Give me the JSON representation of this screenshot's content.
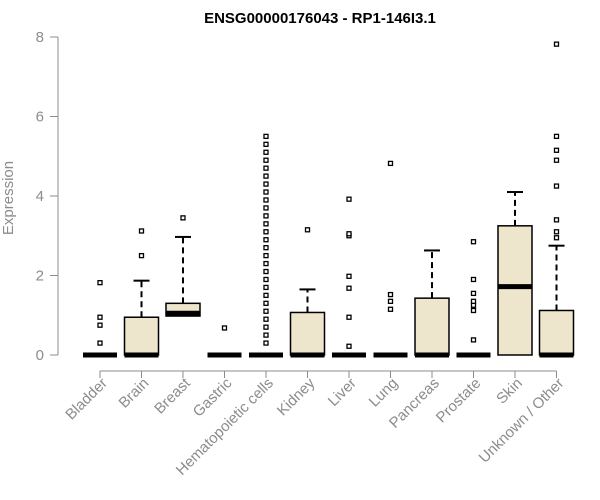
{
  "chart_data": {
    "type": "boxplot",
    "title": "ENSG00000176043 - RP1-146I3.1",
    "xlabel": "",
    "ylabel": "Expression",
    "ylim": [
      0,
      8
    ],
    "yticks": [
      0,
      2,
      4,
      6,
      8
    ],
    "grid": false,
    "colors": {
      "box_fill": "#ede5cc",
      "box_stroke": "#000000",
      "axis": "#8c8c8c"
    },
    "categories": [
      "Bladder",
      "Brain",
      "Breast",
      "Gastric",
      "Hematopoietic cells",
      "Kidney",
      "Liver",
      "Lung",
      "Pancreas",
      "Prostate",
      "Skin",
      "Unknown / Other"
    ],
    "boxes": [
      {
        "category": "Bladder",
        "q1": 0,
        "median": 0,
        "q3": 0,
        "whisker_low": 0,
        "whisker_high": 0,
        "outliers": [
          0.3,
          0.75,
          0.95,
          1.82
        ]
      },
      {
        "category": "Brain",
        "q1": 0,
        "median": 0,
        "q3": 0.95,
        "whisker_low": 0,
        "whisker_high": 1.87,
        "outliers": [
          2.5,
          3.12
        ]
      },
      {
        "category": "Breast",
        "q1": 0.98,
        "median": 1.05,
        "q3": 1.3,
        "whisker_low": 0,
        "whisker_high": 2.97,
        "outliers": [
          3.45
        ]
      },
      {
        "category": "Gastric",
        "q1": 0,
        "median": 0,
        "q3": 0,
        "whisker_low": 0,
        "whisker_high": 0,
        "outliers": [
          0.68
        ]
      },
      {
        "category": "Hematopoietic cells",
        "q1": 0,
        "median": 0,
        "q3": 0,
        "whisker_low": 0,
        "whisker_high": 0,
        "outliers": [
          0.3,
          0.5,
          0.7,
          0.9,
          1.1,
          1.3,
          1.5,
          1.7,
          1.9,
          2.1,
          2.3,
          2.5,
          2.7,
          2.9,
          3.1,
          3.3,
          3.5,
          3.7,
          3.9,
          4.1,
          4.3,
          4.5,
          4.7,
          4.9,
          5.1,
          5.3,
          5.5
        ]
      },
      {
        "category": "Kidney",
        "q1": 0,
        "median": 0,
        "q3": 1.07,
        "whisker_low": 0,
        "whisker_high": 1.65,
        "outliers": [
          3.15
        ]
      },
      {
        "category": "Liver",
        "q1": 0,
        "median": 0,
        "q3": 0,
        "whisker_low": 0,
        "whisker_high": 0,
        "outliers": [
          0.22,
          0.95,
          1.68,
          1.98,
          3.0,
          3.05,
          3.92
        ]
      },
      {
        "category": "Lung",
        "q1": 0,
        "median": 0,
        "q3": 0,
        "whisker_low": 0,
        "whisker_high": 0,
        "outliers": [
          1.15,
          1.35,
          1.52,
          4.82
        ]
      },
      {
        "category": "Pancreas",
        "q1": 0,
        "median": 0,
        "q3": 1.43,
        "whisker_low": 0,
        "whisker_high": 2.63,
        "outliers": []
      },
      {
        "category": "Prostate",
        "q1": 0,
        "median": 0,
        "q3": 0,
        "whisker_low": 0,
        "whisker_high": 0,
        "outliers": [
          0.38,
          1.12,
          1.25,
          1.35,
          1.55,
          1.9,
          2.85
        ]
      },
      {
        "category": "Skin",
        "q1": 0,
        "median": 1.72,
        "q3": 3.25,
        "whisker_low": 0,
        "whisker_high": 4.1,
        "outliers": []
      },
      {
        "category": "Unknown / Other",
        "q1": 0,
        "median": 0,
        "q3": 1.12,
        "whisker_low": 0,
        "whisker_high": 2.75,
        "outliers": [
          2.95,
          3.1,
          3.4,
          4.25,
          4.9,
          5.15,
          5.5,
          7.82
        ]
      }
    ]
  }
}
